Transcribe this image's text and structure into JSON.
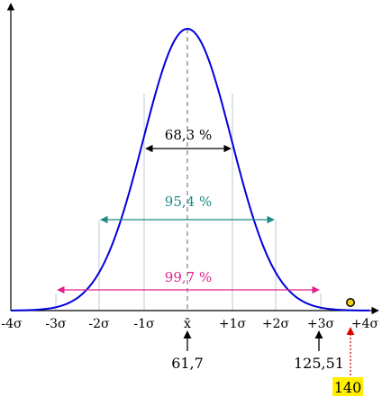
{
  "diagram": {
    "type": "normal-distribution-sigma-intervals",
    "x_ticks": [
      "-4σ",
      "-3σ",
      "-2σ",
      "-1σ",
      "x̄",
      "+1σ",
      "+2σ",
      "+3σ",
      "+4σ"
    ],
    "intervals": [
      {
        "sigma": 1,
        "label": "68,3 %",
        "color": "#000000"
      },
      {
        "sigma": 2,
        "label": "95,4 %",
        "color": "#1a8a84"
      },
      {
        "sigma": 3,
        "label": "99,7 %",
        "color": "#e0208f"
      }
    ],
    "markers": {
      "mean_value": "61,7",
      "three_sigma_value": "125,51",
      "highlight_value": "140"
    },
    "colors": {
      "curve": "#0000dd",
      "grid": "#b8c8d4",
      "highlight_box": "#ffee00",
      "highlight_arrow": "#e00000",
      "point_fill": "#f2d01a"
    }
  }
}
